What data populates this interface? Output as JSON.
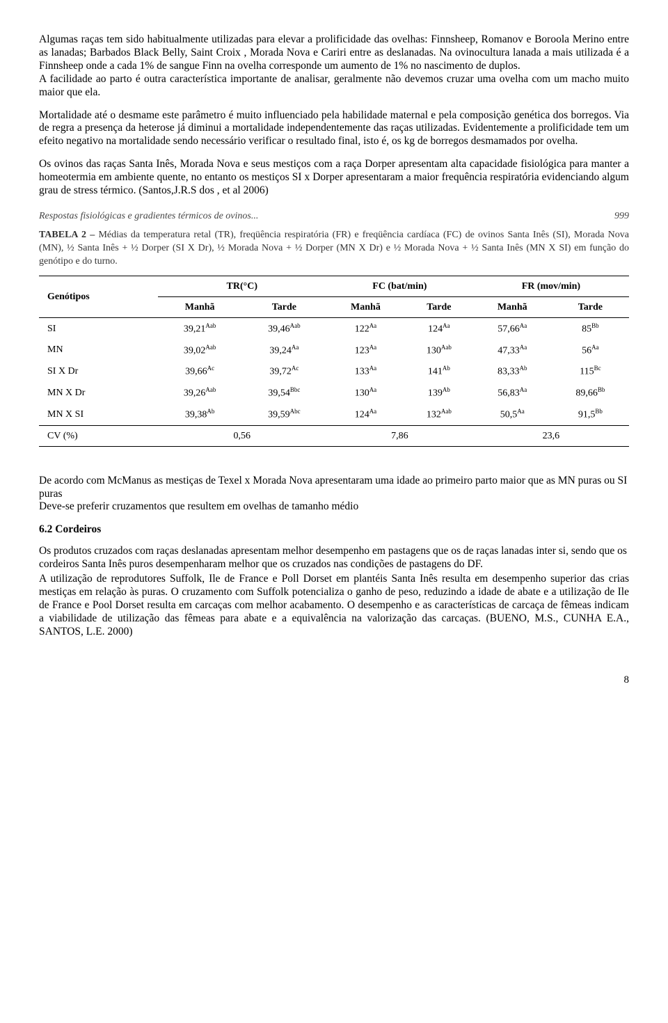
{
  "para1": "Algumas raças tem sido habitualmente utilizadas para elevar a prolificidade das ovelhas: Finnsheep, Romanov e Boroola Merino entre as lanadas; Barbados Black Belly, Saint Croix , Morada Nova e Cariri entre as deslanadas. Na ovinocultura lanada a mais utilizada é a Finnsheep onde a cada 1% de sangue Finn na ovelha corresponde um aumento de 1% no nascimento de duplos.",
  "para2": "A facilidade ao parto é outra característica importante de analisar, geralmente não devemos cruzar uma ovelha com um macho muito maior que ela.",
  "para3": "Mortalidade até o desmame este parâmetro é muito influenciado pela habilidade maternal e pela composição genética dos borregos. Via de regra a presença da heterose já diminui a mortalidade independentemente das raças utilizadas. Evidentemente a prolificidade tem um efeito negativo na mortalidade sendo necessário verificar o resultado final, isto é, os kg de borregos desmamados por ovelha.",
  "para4": "Os ovinos das raças Santa Inês, Morada Nova e seus mestiços com a raça Dorper apresentam alta capacidade fisiológica para manter a homeotermia em ambiente quente, no entanto os mestiços SI x Dorper apresentaram a maior frequência respiratória evidenciando algum grau de stress térmico. (Santos,J.R.S dos , et al  2006)",
  "tbl": {
    "running_title": "Respostas fisiológicas e gradientes térmicos de ovinos...",
    "running_page": "999",
    "caption_label": "TABELA 2 – ",
    "caption": "Médias da temperatura retal (TR), freqüência respiratória (FR) e freqüência cardíaca (FC) de ovinos  Santa Inês (SI), Morada Nova (MN), ½ Santa Inês + ½ Dorper (SI X Dr), ½  Morada Nova + ½ Dorper (MN X Dr) e  ½ Morada Nova  + ½ Santa Inês (MN X SI) em função do genótipo e do turno.",
    "col_geno": "Genótipos",
    "heads": [
      "TR(°C)",
      "FC (bat/min)",
      "FR (mov/min)"
    ],
    "sub": [
      "Manhã",
      "Tarde",
      "Manhã",
      "Tarde",
      "Manhã",
      "Tarde"
    ],
    "rows": [
      {
        "g": "SI",
        "v": [
          "39,21",
          "39,46",
          "122",
          "124",
          "57,66",
          "85"
        ],
        "s": [
          "Aab",
          "Aab",
          "Aa",
          "Aa",
          "Aa",
          "Bb"
        ]
      },
      {
        "g": "MN",
        "v": [
          "39,02",
          "39,24",
          "123",
          "130",
          "47,33",
          "56"
        ],
        "s": [
          "Aab",
          "Aa",
          "Aa",
          "Aab",
          "Aa",
          "Aa"
        ]
      },
      {
        "g": "SI X Dr",
        "v": [
          "39,66",
          "39,72",
          "133",
          "141",
          "83,33",
          "115"
        ],
        "s": [
          "Ac",
          "Ac",
          "Aa",
          "Ab",
          "Ab",
          "Bc"
        ]
      },
      {
        "g": "MN X Dr",
        "v": [
          "39,26",
          "39,54",
          "130",
          "139",
          "56,83",
          "89,66"
        ],
        "s": [
          "Aab",
          "Bbc",
          "Aa",
          "Ab",
          "Aa",
          "Bb"
        ]
      },
      {
        "g": "MN X SI",
        "v": [
          "39,38",
          "39,59",
          "124",
          "132",
          "50,5",
          "91,5"
        ],
        "s": [
          "Ab",
          "Abc",
          "Aa",
          "Aab",
          "Aa",
          "Bb"
        ]
      }
    ],
    "cv_label": "CV (%)",
    "cv": [
      "0,56",
      "7,86",
      "23,6"
    ]
  },
  "para5a": "De acordo com McManus as mestiças de Texel x Morada Nova apresentaram uma idade ao primeiro parto maior que as MN puras ou SI puras",
  "para5b": "Deve-se preferir cruzamentos que resultem em ovelhas de tamanho médio",
  "h62": "6.2 Cordeiros",
  "para6": "Os produtos cruzados com raças deslanadas apresentam melhor desempenho em pastagens que os de raças lanadas inter si, sendo que os cordeiros Santa Inês puros desempenharam melhor que os cruzados nas condições de pastagens do DF.",
  "para7": "A utilização de reprodutores Suffolk, Ile de France e Poll Dorset em plantéis Santa Inês resulta em desempenho superior das crias mestiças em relação às puras. O cruzamento com Suffolk potencializa o ganho de peso, reduzindo a idade de abate e a utilização de Ile de France e Pool Dorset resulta em carcaças com melhor acabamento. O desempenho e as características de carcaça de fêmeas indicam a viabilidade de utilização das fêmeas para abate e a equivalência na valorização das carcaças. (BUENO, M.S., CUNHA E.A., SANTOS, L.E. 2000)",
  "page": "8"
}
